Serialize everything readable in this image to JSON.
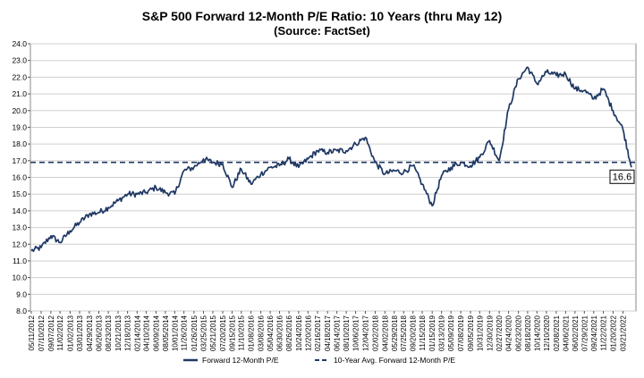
{
  "chart_data": {
    "type": "line",
    "title": "S&P 500 Forward 12-Month P/E Ratio: 10 Years (thru May 12)",
    "subtitle": "(Source: FactSet)",
    "xlabel": "",
    "ylabel": "",
    "ylim": [
      8.0,
      24.0
    ],
    "yticks": [
      8.0,
      9.0,
      10.0,
      11.0,
      12.0,
      13.0,
      14.0,
      15.0,
      16.0,
      17.0,
      18.0,
      19.0,
      20.0,
      21.0,
      22.0,
      23.0,
      24.0
    ],
    "x_tick_labels": [
      "05/11/2012",
      "07/10/2012",
      "09/07/2012",
      "11/02/2012",
      "01/02/2013",
      "03/01/2013",
      "04/29/2013",
      "06/26/2013",
      "08/23/2013",
      "10/21/2013",
      "12/18/2013",
      "02/14/2014",
      "04/10/2014",
      "06/09/2014",
      "08/05/2014",
      "10/01/2014",
      "11/26/2014",
      "01/26/2015",
      "03/25/2015",
      "05/21/2015",
      "07/20/2015",
      "09/15/2015",
      "11/10/2015",
      "01/08/2016",
      "03/08/2016",
      "05/04/2016",
      "06/30/2016",
      "08/26/2016",
      "10/24/2016",
      "12/20/2016",
      "02/16/2017",
      "04/18/2017",
      "06/14/2017",
      "08/10/2017",
      "10/06/2017",
      "12/04/2017",
      "02/02/2018",
      "04/02/2018",
      "05/29/2018",
      "07/25/2018",
      "09/20/2018",
      "11/15/2018",
      "01/15/2019",
      "03/13/2019",
      "05/09/2019",
      "07/08/2019",
      "09/05/2019",
      "10/31/2019",
      "12/30/2019",
      "02/27/2020",
      "04/24/2020",
      "06/23/2020",
      "08/18/2020",
      "10/14/2020",
      "12/10/2020",
      "02/08/2021",
      "04/06/2021",
      "06/02/2021",
      "07/29/2021",
      "09/24/2021",
      "11/22/2021",
      "01/20/2022",
      "03/21/2022"
    ],
    "grid": true,
    "legend_position": "bottom",
    "series": [
      {
        "name": "Forward 12-Month P/E",
        "color": "#1f3864",
        "points": [
          [
            "05/11/2012",
            11.6
          ],
          [
            "07/10/2012",
            11.8
          ],
          [
            "09/07/2012",
            12.5
          ],
          [
            "11/02/2012",
            12.1
          ],
          [
            "01/02/2013",
            12.8
          ],
          [
            "03/01/2013",
            13.3
          ],
          [
            "04/29/2013",
            13.8
          ],
          [
            "06/26/2013",
            13.9
          ],
          [
            "08/23/2013",
            14.2
          ],
          [
            "10/21/2013",
            14.6
          ],
          [
            "12/18/2013",
            15.0
          ],
          [
            "02/14/2014",
            15.0
          ],
          [
            "04/10/2014",
            15.1
          ],
          [
            "06/09/2014",
            15.4
          ],
          [
            "08/05/2014",
            15.1
          ],
          [
            "10/01/2014",
            15.0
          ],
          [
            "11/26/2014",
            16.4
          ],
          [
            "01/26/2015",
            16.6
          ],
          [
            "03/25/2015",
            17.1
          ],
          [
            "05/21/2015",
            16.9
          ],
          [
            "07/20/2015",
            16.8
          ],
          [
            "09/15/2015",
            15.4
          ],
          [
            "11/10/2015",
            16.5
          ],
          [
            "01/08/2016",
            15.6
          ],
          [
            "03/08/2016",
            16.2
          ],
          [
            "05/04/2016",
            16.6
          ],
          [
            "06/30/2016",
            16.7
          ],
          [
            "08/26/2016",
            17.1
          ],
          [
            "10/24/2016",
            16.6
          ],
          [
            "12/20/2016",
            17.1
          ],
          [
            "02/16/2017",
            17.6
          ],
          [
            "04/18/2017",
            17.5
          ],
          [
            "06/14/2017",
            17.6
          ],
          [
            "08/10/2017",
            17.6
          ],
          [
            "10/06/2017",
            18.0
          ],
          [
            "12/04/2017",
            18.4
          ],
          [
            "02/02/2018",
            16.9
          ],
          [
            "04/02/2018",
            16.2
          ],
          [
            "05/29/2018",
            16.4
          ],
          [
            "07/25/2018",
            16.3
          ],
          [
            "09/20/2018",
            16.7
          ],
          [
            "11/15/2018",
            15.6
          ],
          [
            "01/15/2019",
            14.3
          ],
          [
            "03/13/2019",
            16.1
          ],
          [
            "05/09/2019",
            16.6
          ],
          [
            "07/08/2019",
            16.9
          ],
          [
            "09/05/2019",
            16.7
          ],
          [
            "10/31/2019",
            17.2
          ],
          [
            "12/30/2019",
            18.2
          ],
          [
            "02/27/2020",
            17.0
          ],
          [
            "04/24/2020",
            20.1
          ],
          [
            "06/23/2020",
            21.9
          ],
          [
            "08/18/2020",
            22.6
          ],
          [
            "10/14/2020",
            21.6
          ],
          [
            "12/10/2020",
            22.3
          ],
          [
            "02/08/2021",
            22.1
          ],
          [
            "04/06/2021",
            22.2
          ],
          [
            "06/02/2021",
            21.3
          ],
          [
            "07/29/2021",
            21.2
          ],
          [
            "09/24/2021",
            20.7
          ],
          [
            "11/22/2021",
            21.3
          ],
          [
            "01/20/2022",
            20.0
          ],
          [
            "03/21/2022",
            18.9
          ]
        ]
      },
      {
        "name": "10-Year Avg. Forward 12-Month P/E",
        "color": "#1f3864",
        "style": "dashed",
        "value": 16.9
      }
    ],
    "annotations": [
      {
        "text": "16.6",
        "x": "05/12/2022",
        "y": 16.6
      }
    ]
  }
}
